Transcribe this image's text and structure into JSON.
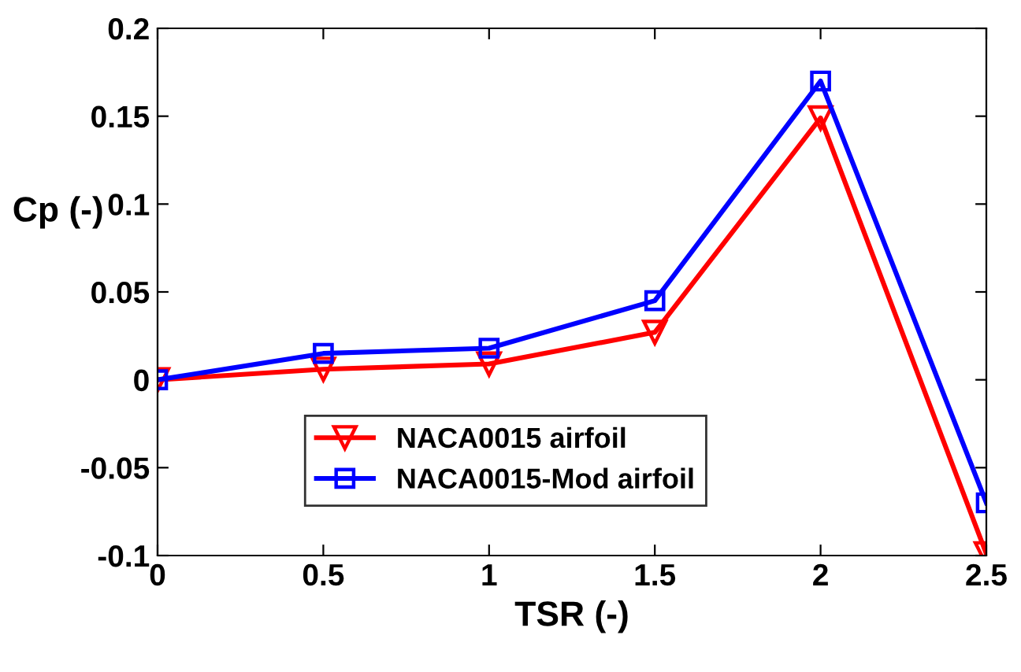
{
  "chart_data": {
    "type": "line",
    "xlabel": "TSR (-)",
    "ylabel": "Cp (-)",
    "x": [
      0,
      0.5,
      1,
      1.5,
      2,
      2.5
    ],
    "series": [
      {
        "name": "NACA0015 airfoil",
        "color": "#ff0000",
        "marker": "triangle",
        "values": [
          0,
          0.006,
          0.009,
          0.027,
          0.149,
          -0.099
        ]
      },
      {
        "name": "NACA0015-Mod airfoil",
        "color": "#0000ff",
        "marker": "square",
        "values": [
          0,
          0.015,
          0.018,
          0.045,
          0.17,
          -0.07
        ]
      }
    ],
    "xlim": [
      0,
      2.5
    ],
    "xticks": [
      0,
      0.5,
      1,
      1.5,
      2,
      2.5
    ],
    "ylim": [
      -0.1,
      0.2
    ],
    "yticks": [
      -0.1,
      -0.05,
      0,
      0.05,
      0.1,
      0.15,
      0.2
    ],
    "grid": false,
    "legend": "bottom",
    "line_style": "solid"
  }
}
